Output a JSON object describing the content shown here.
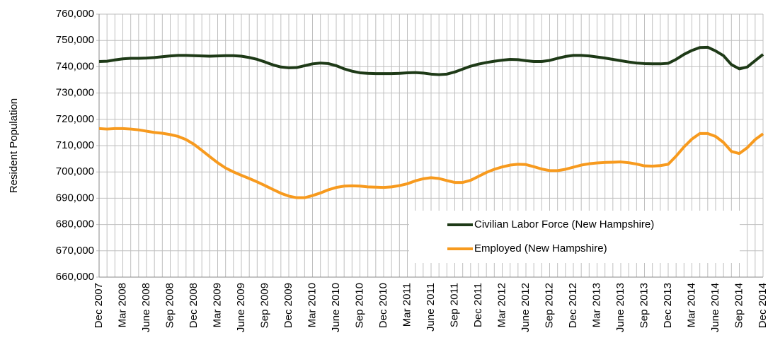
{
  "chart_data": {
    "type": "line",
    "y_label": "Resident Population",
    "categories": [
      "Dec 2007",
      null,
      null,
      "Mar 2008",
      null,
      null,
      "June 2008",
      null,
      null,
      "Sep 2008",
      null,
      null,
      "Dec 2008",
      null,
      null,
      "Mar 2009",
      null,
      null,
      "June 2009",
      null,
      null,
      "Sep 2009",
      null,
      null,
      "Dec 2009",
      null,
      null,
      "Mar 2010",
      null,
      null,
      "June 2010",
      null,
      null,
      "Sep 2010",
      null,
      null,
      "Dec 2010",
      null,
      null,
      "Mar 2011",
      null,
      null,
      "June 2011",
      null,
      null,
      "Sep 2011",
      null,
      null,
      "Dec 2011",
      null,
      null,
      "Mar 2012",
      null,
      null,
      "June 2012",
      null,
      null,
      "Sep 2012",
      null,
      null,
      "Dec 2012",
      null,
      null,
      "Mar 2013",
      null,
      null,
      "June 2013",
      null,
      null,
      "Sep 2013",
      null,
      null,
      "Dec 2013",
      null,
      null,
      "Mar 2014",
      null,
      null,
      "June 2014",
      null,
      null,
      "Sep 2014",
      null,
      null,
      "Dec 2014"
    ],
    "series": [
      {
        "name": "Civilian Labor Force (New Hampshire)",
        "color": "#1e3a17",
        "values": [
          742000,
          742100,
          742600,
          743000,
          743200,
          743200,
          743300,
          743500,
          743800,
          744100,
          744300,
          744300,
          744200,
          744100,
          744000,
          744100,
          744200,
          744200,
          744000,
          743500,
          742800,
          741800,
          740700,
          739900,
          739600,
          739700,
          740400,
          741100,
          741400,
          741200,
          740400,
          739200,
          738300,
          737700,
          737500,
          737400,
          737400,
          737400,
          737500,
          737700,
          737800,
          737600,
          737200,
          737000,
          737200,
          738000,
          739100,
          740200,
          741000,
          741600,
          742100,
          742500,
          742800,
          742700,
          742300,
          742000,
          742000,
          742400,
          743200,
          743900,
          744300,
          744300,
          744100,
          743700,
          743300,
          742800,
          742300,
          741800,
          741400,
          741200,
          741100,
          741100,
          741300,
          742800,
          744700,
          746200,
          747300,
          747400,
          746000,
          744200,
          740800,
          739200,
          739900,
          742300,
          744700
        ]
      },
      {
        "name": "Employed (New Hampshire)",
        "color": "#f79a1e",
        "values": [
          716500,
          716300,
          716500,
          716500,
          716300,
          716000,
          715500,
          715000,
          714700,
          714200,
          713500,
          712300,
          710500,
          708200,
          705800,
          703500,
          701500,
          700000,
          698700,
          697500,
          696200,
          694800,
          693300,
          691900,
          690800,
          690200,
          690200,
          691000,
          692000,
          693200,
          694100,
          694600,
          694700,
          694600,
          694300,
          694200,
          694100,
          694300,
          694800,
          695500,
          696600,
          697400,
          697800,
          697500,
          696700,
          696000,
          696000,
          696800,
          698300,
          699800,
          701000,
          701900,
          702600,
          702900,
          702800,
          702000,
          701100,
          700500,
          700500,
          701000,
          701800,
          702600,
          703100,
          703400,
          703600,
          703700,
          703800,
          703500,
          703000,
          702300,
          702200,
          702400,
          702900,
          706000,
          709500,
          712500,
          714600,
          714600,
          713500,
          711200,
          707800,
          707000,
          709200,
          712300,
          714500
        ]
      }
    ],
    "ylim": [
      660000,
      760000
    ],
    "yticks": [
      {
        "value": 660000,
        "label": "660,000"
      },
      {
        "value": 670000,
        "label": "670,000"
      },
      {
        "value": 680000,
        "label": "680,000"
      },
      {
        "value": 690000,
        "label": "690,000"
      },
      {
        "value": 700000,
        "label": "700,000"
      },
      {
        "value": 710000,
        "label": "710,000"
      },
      {
        "value": 720000,
        "label": "720,000"
      },
      {
        "value": 730000,
        "label": "730,000"
      },
      {
        "value": 740000,
        "label": "740,000"
      },
      {
        "value": 750000,
        "label": "750,000"
      },
      {
        "value": 760000,
        "label": "760,000"
      }
    ],
    "grid": true
  }
}
